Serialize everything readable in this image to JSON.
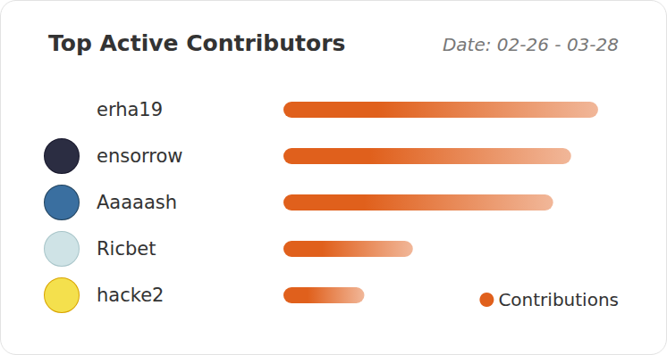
{
  "chart_data": {
    "type": "bar",
    "orientation": "horizontal",
    "title": "Top Active Contributors",
    "subtitle": "Date: 02-26 - 03-28",
    "categories": [
      "erha19",
      "ensorrow",
      "Aaaaash",
      "Ricbet",
      "hacke2"
    ],
    "series": [
      {
        "name": "Contributions",
        "color": "#e0601c",
        "values": [
          35,
          32,
          30,
          14.4,
          9
        ]
      }
    ],
    "xlim": [
      0,
      36
    ],
    "grid": false,
    "tick_labels": "y",
    "legend": "bottom-right"
  }
}
